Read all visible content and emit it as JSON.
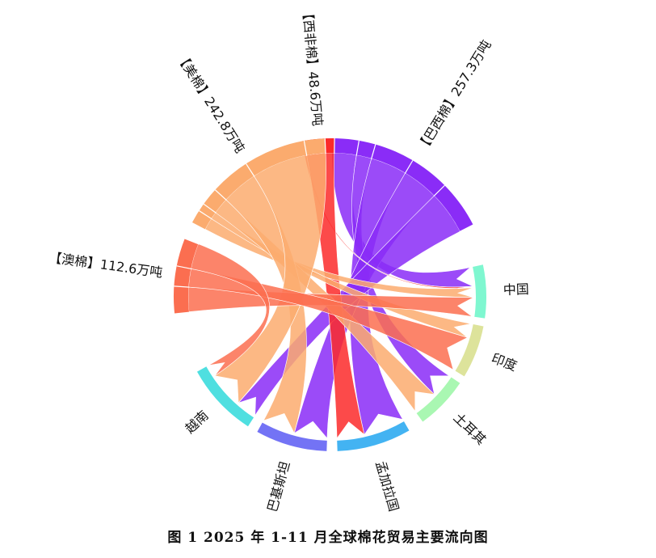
{
  "chart_data": {
    "type": "chord",
    "caption": "图 1   2025 年 1-11 月全球棉花贸易主要流向图",
    "exporters": [
      {
        "name": "巴西棉",
        "label": "【巴西棉】257.3万吨",
        "value": 257.3,
        "color": "#8a2cf7"
      },
      {
        "name": "西非棉",
        "label": "【西非棉】48.6万吨",
        "value": 48.6,
        "color": "#fb2a2a"
      },
      {
        "name": "美棉",
        "label": "【美棉】242.8万吨",
        "value": 242.8,
        "color": "#fbab6e"
      },
      {
        "name": "澳棉",
        "label": "【澳棉】112.6万吨",
        "value": 112.6,
        "color": "#fb6e50"
      }
    ],
    "importers": [
      {
        "name": "中国",
        "label": "中国",
        "color": "#7ff7d0"
      },
      {
        "name": "印度",
        "label": "印度",
        "color": "#dde39b"
      },
      {
        "name": "土耳其",
        "label": "土耳其",
        "color": "#a9f7b2"
      },
      {
        "name": "孟加拉国",
        "label": "孟加拉国",
        "color": "#43b3f2"
      },
      {
        "name": "巴基斯坦",
        "label": "巴基斯坦",
        "color": "#7373f5"
      },
      {
        "name": "越南",
        "label": "越南",
        "color": "#4fdfe0"
      }
    ],
    "flows": [
      {
        "from": "巴西棉",
        "to": "中国",
        "value": 40
      },
      {
        "from": "巴西棉",
        "to": "土耳其",
        "value": 25
      },
      {
        "from": "巴西棉",
        "to": "孟加拉国",
        "value": 60
      },
      {
        "from": "巴西棉",
        "to": "巴基斯坦",
        "value": 60
      },
      {
        "from": "巴西棉",
        "to": "越南",
        "value": 72
      },
      {
        "from": "西非棉",
        "to": "中国",
        "value": 3
      },
      {
        "from": "西非棉",
        "to": "孟加拉国",
        "value": 40
      },
      {
        "from": "美棉",
        "to": "中国",
        "value": 20
      },
      {
        "from": "美棉",
        "to": "印度",
        "value": 12
      },
      {
        "from": "美棉",
        "to": "土耳其",
        "value": 27
      },
      {
        "from": "美棉",
        "to": "巴基斯坦",
        "value": 60
      },
      {
        "from": "美棉",
        "to": "越南",
        "value": 124
      },
      {
        "from": "澳棉",
        "to": "中国",
        "value": 40
      },
      {
        "from": "澳棉",
        "to": "印度",
        "value": 30
      },
      {
        "from": "澳棉",
        "to": "越南",
        "value": 42
      }
    ]
  }
}
